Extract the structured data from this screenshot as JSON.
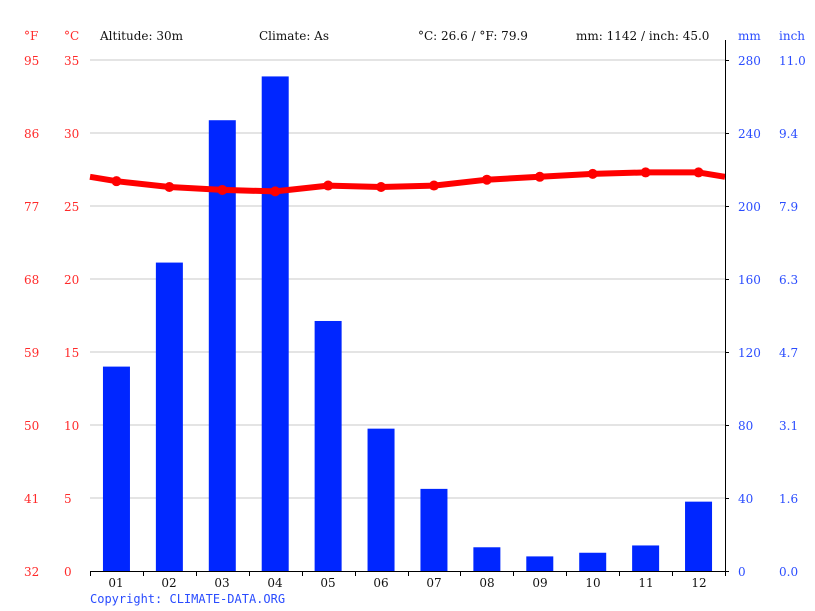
{
  "header": {
    "fahrenheit_unit": "°F",
    "celsius_unit": "°C",
    "altitude": "Altitude: 30m",
    "climate": "Climate: As",
    "avg_temp": "°C: 26.6 / °F: 79.9",
    "precip_total": "mm: 1142 / inch: 45.0",
    "mm_unit": "mm",
    "inch_unit": "inch"
  },
  "axes": {
    "fahrenheit_ticks": [
      "95",
      "86",
      "77",
      "68",
      "59",
      "50",
      "41",
      "32"
    ],
    "celsius_ticks": [
      "35",
      "30",
      "25",
      "20",
      "15",
      "10",
      "5",
      "0"
    ],
    "mm_ticks": [
      "280",
      "240",
      "200",
      "160",
      "120",
      "80",
      "40",
      "0"
    ],
    "inch_ticks": [
      "11.0",
      "9.4",
      "7.9",
      "6.3",
      "4.7",
      "3.1",
      "1.6",
      "0.0"
    ],
    "months": [
      "01",
      "02",
      "03",
      "04",
      "05",
      "06",
      "07",
      "08",
      "09",
      "10",
      "11",
      "12"
    ]
  },
  "footer": {
    "copyright": "Copyright: CLIMATE-DATA.ORG"
  },
  "colors": {
    "bar": "#0026ff",
    "line": "#ff0000",
    "temp_text": "#ff2a2a",
    "precip_text": "#2a4cff",
    "grid": "#c8c8c8"
  },
  "chart_data": {
    "type": "bar+line",
    "title": "",
    "categories": [
      "01",
      "02",
      "03",
      "04",
      "05",
      "06",
      "07",
      "08",
      "09",
      "10",
      "11",
      "12"
    ],
    "series": [
      {
        "name": "Precipitation (mm)",
        "type": "bar",
        "axis": "right",
        "values": [
          112,
          169,
          247,
          271,
          137,
          78,
          45,
          13,
          8,
          10,
          14,
          38
        ]
      },
      {
        "name": "Temperature (°C)",
        "type": "line",
        "axis": "left",
        "values": [
          26.7,
          26.3,
          26.1,
          26.0,
          26.4,
          26.3,
          26.4,
          26.8,
          27.0,
          27.2,
          27.3,
          27.3
        ]
      }
    ],
    "xlabel": "",
    "ylabel_left": "°C / °F",
    "ylabel_right": "mm / inch",
    "ylim_left": [
      0,
      35
    ],
    "ylim_right": [
      0,
      280
    ],
    "grid": true,
    "legend": "none",
    "annotations": [
      "Altitude: 30m",
      "Climate: As",
      "°C: 26.6 / °F: 79.9",
      "mm: 1142 / inch: 45.0"
    ]
  }
}
